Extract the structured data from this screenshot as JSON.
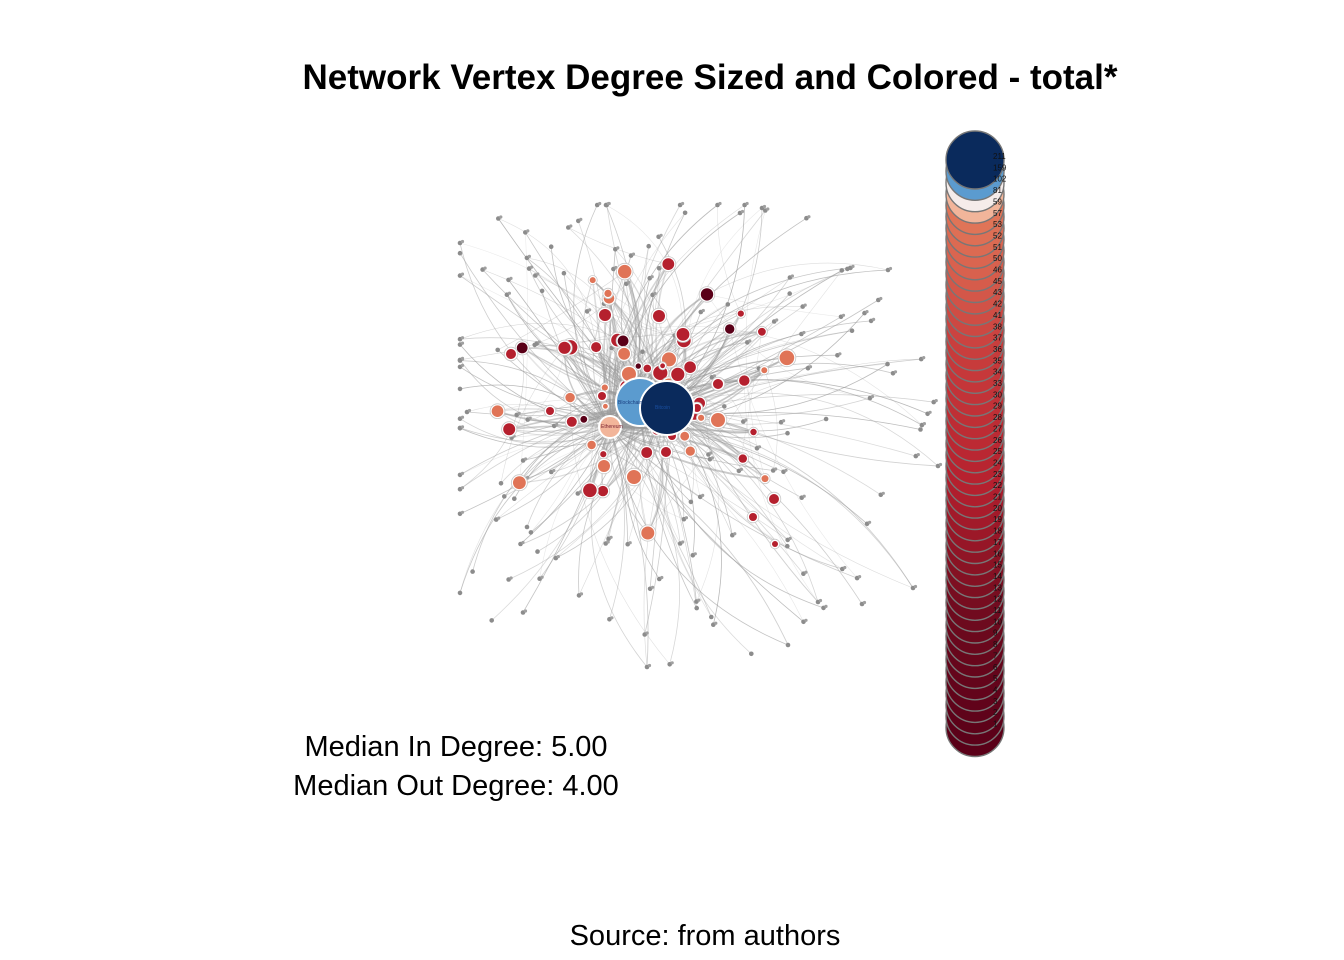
{
  "title": "Network Vertex Degree Sized and Colored - total*",
  "stats": {
    "median_in": "Median In Degree: 5.00",
    "median_out": "Median Out Degree: 4.00"
  },
  "source": "Source: from authors",
  "colors": {
    "top": "#0a2a5c",
    "second": "#5b9bcf",
    "light": "#f5ecea",
    "peach": "#f2b59a",
    "salmon": "#e07457",
    "red": "#b5202e",
    "dark_red": "#5a0018",
    "edge": "#9a9a9a"
  },
  "legend": {
    "degrees": [
      "211",
      "159",
      "102",
      "81",
      "59",
      "57",
      "53",
      "52",
      "51",
      "50",
      "46",
      "45",
      "43",
      "42",
      "41",
      "38",
      "37",
      "36",
      "35",
      "34",
      "33",
      "30",
      "29",
      "28",
      "27",
      "26",
      "25",
      "24",
      "23",
      "22",
      "21",
      "20",
      "19",
      "18",
      "17",
      "16",
      "15",
      "14",
      "13",
      "12",
      "11",
      "10",
      "9",
      "8",
      "7",
      "6",
      "5",
      "4",
      "3",
      "2",
      "1"
    ]
  },
  "hub_labels": {
    "main": "Bitcoin",
    "second": "Blockchain",
    "third": "Ethereum"
  }
}
